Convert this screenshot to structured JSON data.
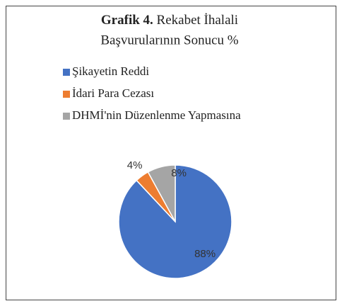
{
  "chart_data": {
    "type": "pie",
    "title": {
      "label": "Grafik 4.",
      "text": [
        "Rekabet İhalali",
        "Başvurularının Sonucu %"
      ]
    },
    "categories": [
      "Şikayetin Reddi",
      "İdari Para Cezası",
      "DHMİ'nin Düzenlenme Yapmasına"
    ],
    "values": [
      88,
      4,
      8
    ],
    "value_labels": [
      "88%",
      "4%",
      "8%"
    ],
    "colors": [
      "#4472c4",
      "#ed7d31",
      "#a5a5a5"
    ],
    "legend": "top"
  }
}
